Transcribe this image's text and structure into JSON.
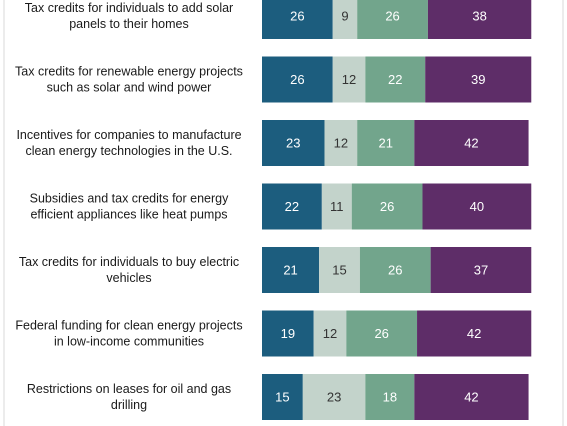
{
  "chart_data": {
    "type": "bar",
    "orientation": "horizontal",
    "stacked": true,
    "categories": [
      [
        "Tax credits for individuals to add solar",
        "panels to their homes"
      ],
      [
        "Tax credits for renewable energy projects",
        "such as solar and wind power"
      ],
      [
        "Incentives for companies to manufacture",
        "clean energy technologies in the U.S."
      ],
      [
        "Subsidies and tax credits for energy",
        "efficient appliances like heat pumps"
      ],
      [
        "Tax credits for individuals to buy electric",
        "vehicles"
      ],
      [
        "Federal funding for clean energy projects",
        "in low-income communities"
      ],
      [
        "Restrictions on leases for oil and gas",
        "drilling"
      ]
    ],
    "series": [
      {
        "values": [
          26,
          26,
          23,
          22,
          21,
          19,
          15
        ],
        "color": "#1c5d7e",
        "text_color": "#ffffff"
      },
      {
        "values": [
          9,
          12,
          12,
          11,
          15,
          12,
          23
        ],
        "color": "#c3d3cb",
        "text_color": "#333333"
      },
      {
        "values": [
          26,
          22,
          21,
          26,
          26,
          26,
          18
        ],
        "color": "#72a58c",
        "text_color": "#ffffff"
      },
      {
        "values": [
          38,
          39,
          42,
          40,
          37,
          42,
          42
        ],
        "color": "#5e2d68",
        "text_color": "#ffffff"
      }
    ],
    "xlim": [
      0,
      100
    ],
    "grid": false,
    "legend": "none"
  }
}
